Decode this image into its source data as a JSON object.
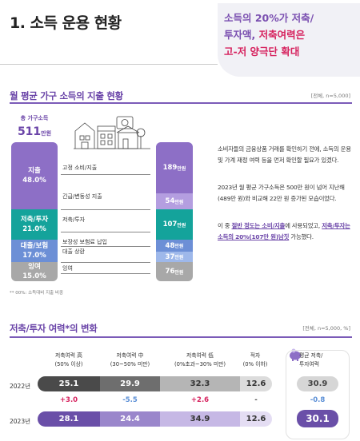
{
  "page": {
    "title": "1. 소득 운용 현황",
    "callout": {
      "line1": "소득의 20%가 저축/",
      "line2a": "투자액, ",
      "line2b": "저축여력은",
      "line3": "고-저 양극단 확대"
    }
  },
  "section1": {
    "heading": "월 평균 가구 소득의 지출 현황",
    "note": "[전체, n=5,000]",
    "total_label": "총 가구소득",
    "total_value": "511",
    "total_unit": "만원",
    "left_segments": [
      {
        "label": "지출",
        "pct": "48.0%",
        "color": "#8d6fc6"
      },
      {
        "label": "저축/투자",
        "pct": "21.0%",
        "color": "#14a39b"
      },
      {
        "label": "대출/보험",
        "pct": "17.0%",
        "color": "#6c8fd6"
      },
      {
        "label": "잉여",
        "pct": "15.0%",
        "color": "#a8a8a8"
      }
    ],
    "items": [
      {
        "label": "고정 소비/지출",
        "value": "189",
        "unit": "만원",
        "color": "#8d6fc6"
      },
      {
        "label": "긴급/변동성 지출",
        "value": "54",
        "unit": "만원",
        "color": "#b49ee0"
      },
      {
        "label": "저축/투자",
        "value": "107",
        "unit": "만원",
        "color": "#14a39b"
      },
      {
        "label": "보장성 보험료 납입",
        "value": "48",
        "unit": "만원",
        "color": "#6c8fd6"
      },
      {
        "label": "대출 상환",
        "value": "37",
        "unit": "만원",
        "color": "#9eb8ea"
      },
      {
        "label": "잉여",
        "value": "76",
        "unit": "만원",
        "color": "#a8a8a8"
      }
    ],
    "footnote": "** 00%: 소득대비 지출 비중",
    "paragraphs": {
      "p1": "소비자들의 금융상품 거래를 확인하기 전에, 소득의 운용 및 가계 재정 여력 등을 먼저 확인할 필요가 있겠다.",
      "p2": "2023년 월 평균 가구소득은 500만 원이 넘어 지난해(489만 원)와 비교해 22만 원 증가된 모습이었다.",
      "p3a": "이 중 ",
      "p3b": "절반 정도는 소비/지출",
      "p3c": "에 사용되었고, ",
      "p3d": "저축/투자는 소득의 20%(107만 원)남짓",
      "p3e": " 가능했다."
    }
  },
  "section2": {
    "heading": "저축/투자 여력*의 변화",
    "note": "[전체, n=5,000, %]",
    "columns": [
      {
        "name": "저축여력 高",
        "sub": "(50% 이상)"
      },
      {
        "name": "저축여력 中",
        "sub": "(30~50% 미만)"
      },
      {
        "name": "저축여력 低",
        "sub": "(0%초과~30% 미만)"
      },
      {
        "name": "적자",
        "sub": "(0% 이하)"
      }
    ],
    "avg_label_1": "평균 저축/",
    "avg_label_2": "투자여력",
    "rows": [
      {
        "year": "2022년",
        "values": [
          "25.1",
          "29.9",
          "32.3",
          "12.6"
        ],
        "avg": "30.9"
      },
      {
        "year": "2023년",
        "values": [
          "28.1",
          "24.4",
          "34.9",
          "12.6"
        ],
        "avg": "30.1"
      }
    ],
    "diffs": [
      "+3.0",
      "-5.5",
      "+2.6",
      "-"
    ],
    "avg_diff": "-0.8",
    "colors": {
      "row1": [
        "#4a4a4a",
        "#6e6e6e",
        "#b5b5b5",
        "#dcdcdc"
      ],
      "row2": [
        "#6a4fa8",
        "#9a86cb",
        "#c6b8e5",
        "#e4ddf3"
      ]
    }
  }
}
